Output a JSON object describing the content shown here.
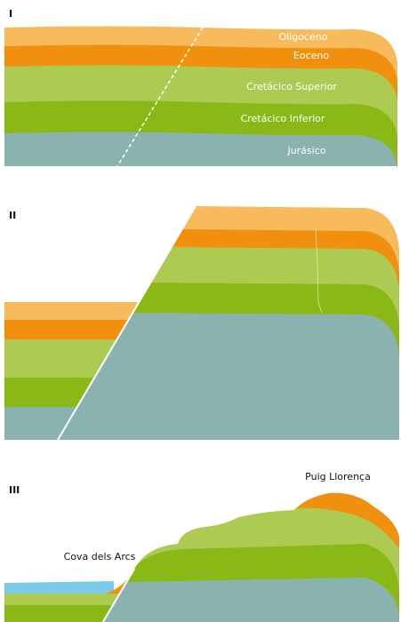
{
  "panels": [
    {
      "label": "I",
      "layers": [
        "Oligoceno",
        "Eoceno",
        "Cretácico Superior",
        "Cretácico Inferior",
        "Jurásico"
      ]
    },
    {
      "label": "II"
    },
    {
      "label": "III",
      "places": [
        "Puig Llorença",
        "Cova dels Arcs"
      ]
    }
  ]
}
